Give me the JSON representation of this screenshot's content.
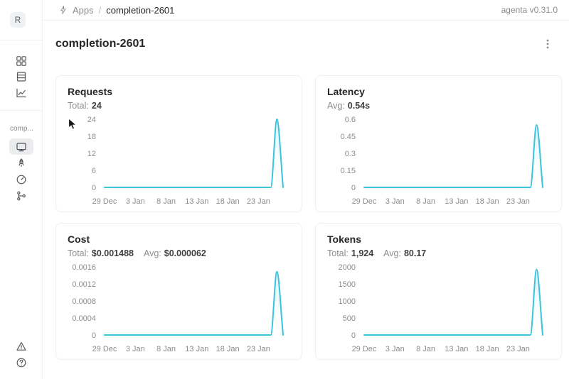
{
  "app": {
    "version_label": "agenta v0.31.0"
  },
  "breadcrumb": {
    "section": "Apps",
    "separator": "/",
    "current": "completion-2601"
  },
  "page": {
    "title": "completion-2601"
  },
  "sidebar": {
    "avatar_initial": "R",
    "workspace_label": "comp...",
    "top_icons": [
      "apps-grid-icon",
      "testsets-rows-icon",
      "observability-trend-icon"
    ],
    "app_icons": [
      "overview-monitor-icon",
      "deployments-rocket-icon",
      "evaluations-gauge-icon",
      "traces-tree-icon"
    ],
    "selected_icon": "overview-monitor-icon",
    "bottom_icons": [
      "alert-triangle-icon",
      "help-icon"
    ]
  },
  "colors": {
    "line": "#38c3de",
    "area_top": "#aee6f2",
    "axis_text": "#8c8c8c",
    "border": "#f0f0f0"
  },
  "chart_data": [
    {
      "type": "line",
      "title": "Requests",
      "stats": [
        {
          "label": "Total:",
          "value": "24"
        }
      ],
      "x": [
        "29 Dec",
        "30 Dec",
        "31 Dec",
        "1 Jan",
        "2 Jan",
        "3 Jan",
        "4 Jan",
        "5 Jan",
        "6 Jan",
        "7 Jan",
        "8 Jan",
        "9 Jan",
        "10 Jan",
        "11 Jan",
        "12 Jan",
        "13 Jan",
        "14 Jan",
        "15 Jan",
        "16 Jan",
        "17 Jan",
        "18 Jan",
        "19 Jan",
        "20 Jan",
        "21 Jan",
        "22 Jan",
        "23 Jan",
        "24 Jan",
        "25 Jan",
        "26 Jan",
        "27 Jan"
      ],
      "x_tick_indexes": [
        0,
        5,
        10,
        15,
        20,
        25
      ],
      "values": [
        0,
        0,
        0,
        0,
        0,
        0,
        0,
        0,
        0,
        0,
        0,
        0,
        0,
        0,
        0,
        0,
        0,
        0,
        0,
        0,
        0,
        0,
        0,
        0,
        0,
        0,
        0,
        0,
        24,
        0
      ],
      "y_ticks": [
        0,
        6,
        12,
        18,
        24
      ],
      "ylim": [
        0,
        24
      ]
    },
    {
      "type": "line",
      "title": "Latency",
      "stats": [
        {
          "label": "Avg:",
          "value": "0.54s"
        }
      ],
      "x": [
        "29 Dec",
        "30 Dec",
        "31 Dec",
        "1 Jan",
        "2 Jan",
        "3 Jan",
        "4 Jan",
        "5 Jan",
        "6 Jan",
        "7 Jan",
        "8 Jan",
        "9 Jan",
        "10 Jan",
        "11 Jan",
        "12 Jan",
        "13 Jan",
        "14 Jan",
        "15 Jan",
        "16 Jan",
        "17 Jan",
        "18 Jan",
        "19 Jan",
        "20 Jan",
        "21 Jan",
        "22 Jan",
        "23 Jan",
        "24 Jan",
        "25 Jan",
        "26 Jan",
        "27 Jan"
      ],
      "x_tick_indexes": [
        0,
        5,
        10,
        15,
        20,
        25
      ],
      "values": [
        0,
        0,
        0,
        0,
        0,
        0,
        0,
        0,
        0,
        0,
        0,
        0,
        0,
        0,
        0,
        0,
        0,
        0,
        0,
        0,
        0,
        0,
        0,
        0,
        0,
        0,
        0,
        0,
        0.55,
        0
      ],
      "y_ticks": [
        0,
        0.15,
        0.3,
        0.45,
        0.6
      ],
      "ylim": [
        0,
        0.6
      ]
    },
    {
      "type": "line",
      "title": "Cost",
      "stats": [
        {
          "label": "Total:",
          "value": "$0.001488"
        },
        {
          "label": "Avg:",
          "value": "$0.000062"
        }
      ],
      "x": [
        "29 Dec",
        "30 Dec",
        "31 Dec",
        "1 Jan",
        "2 Jan",
        "3 Jan",
        "4 Jan",
        "5 Jan",
        "6 Jan",
        "7 Jan",
        "8 Jan",
        "9 Jan",
        "10 Jan",
        "11 Jan",
        "12 Jan",
        "13 Jan",
        "14 Jan",
        "15 Jan",
        "16 Jan",
        "17 Jan",
        "18 Jan",
        "19 Jan",
        "20 Jan",
        "21 Jan",
        "22 Jan",
        "23 Jan",
        "24 Jan",
        "25 Jan",
        "26 Jan",
        "27 Jan"
      ],
      "x_tick_indexes": [
        0,
        5,
        10,
        15,
        20,
        25
      ],
      "values": [
        0,
        0,
        0,
        0,
        0,
        0,
        0,
        0,
        0,
        0,
        0,
        0,
        0,
        0,
        0,
        0,
        0,
        0,
        0,
        0,
        0,
        0,
        0,
        0,
        0,
        0,
        0,
        0,
        0.001488,
        0
      ],
      "y_ticks": [
        0,
        0.0004,
        0.0008,
        0.0012,
        0.0016
      ],
      "ylim": [
        0,
        0.0016
      ]
    },
    {
      "type": "line",
      "title": "Tokens",
      "stats": [
        {
          "label": "Total:",
          "value": "1,924"
        },
        {
          "label": "Avg:",
          "value": "80.17"
        }
      ],
      "x": [
        "29 Dec",
        "30 Dec",
        "31 Dec",
        "1 Jan",
        "2 Jan",
        "3 Jan",
        "4 Jan",
        "5 Jan",
        "6 Jan",
        "7 Jan",
        "8 Jan",
        "9 Jan",
        "10 Jan",
        "11 Jan",
        "12 Jan",
        "13 Jan",
        "14 Jan",
        "15 Jan",
        "16 Jan",
        "17 Jan",
        "18 Jan",
        "19 Jan",
        "20 Jan",
        "21 Jan",
        "22 Jan",
        "23 Jan",
        "24 Jan",
        "25 Jan",
        "26 Jan",
        "27 Jan"
      ],
      "x_tick_indexes": [
        0,
        5,
        10,
        15,
        20,
        25
      ],
      "values": [
        0,
        0,
        0,
        0,
        0,
        0,
        0,
        0,
        0,
        0,
        0,
        0,
        0,
        0,
        0,
        0,
        0,
        0,
        0,
        0,
        0,
        0,
        0,
        0,
        0,
        0,
        0,
        0,
        1924,
        0
      ],
      "y_ticks": [
        0,
        500,
        1000,
        1500,
        2000
      ],
      "ylim": [
        0,
        2000
      ]
    }
  ]
}
